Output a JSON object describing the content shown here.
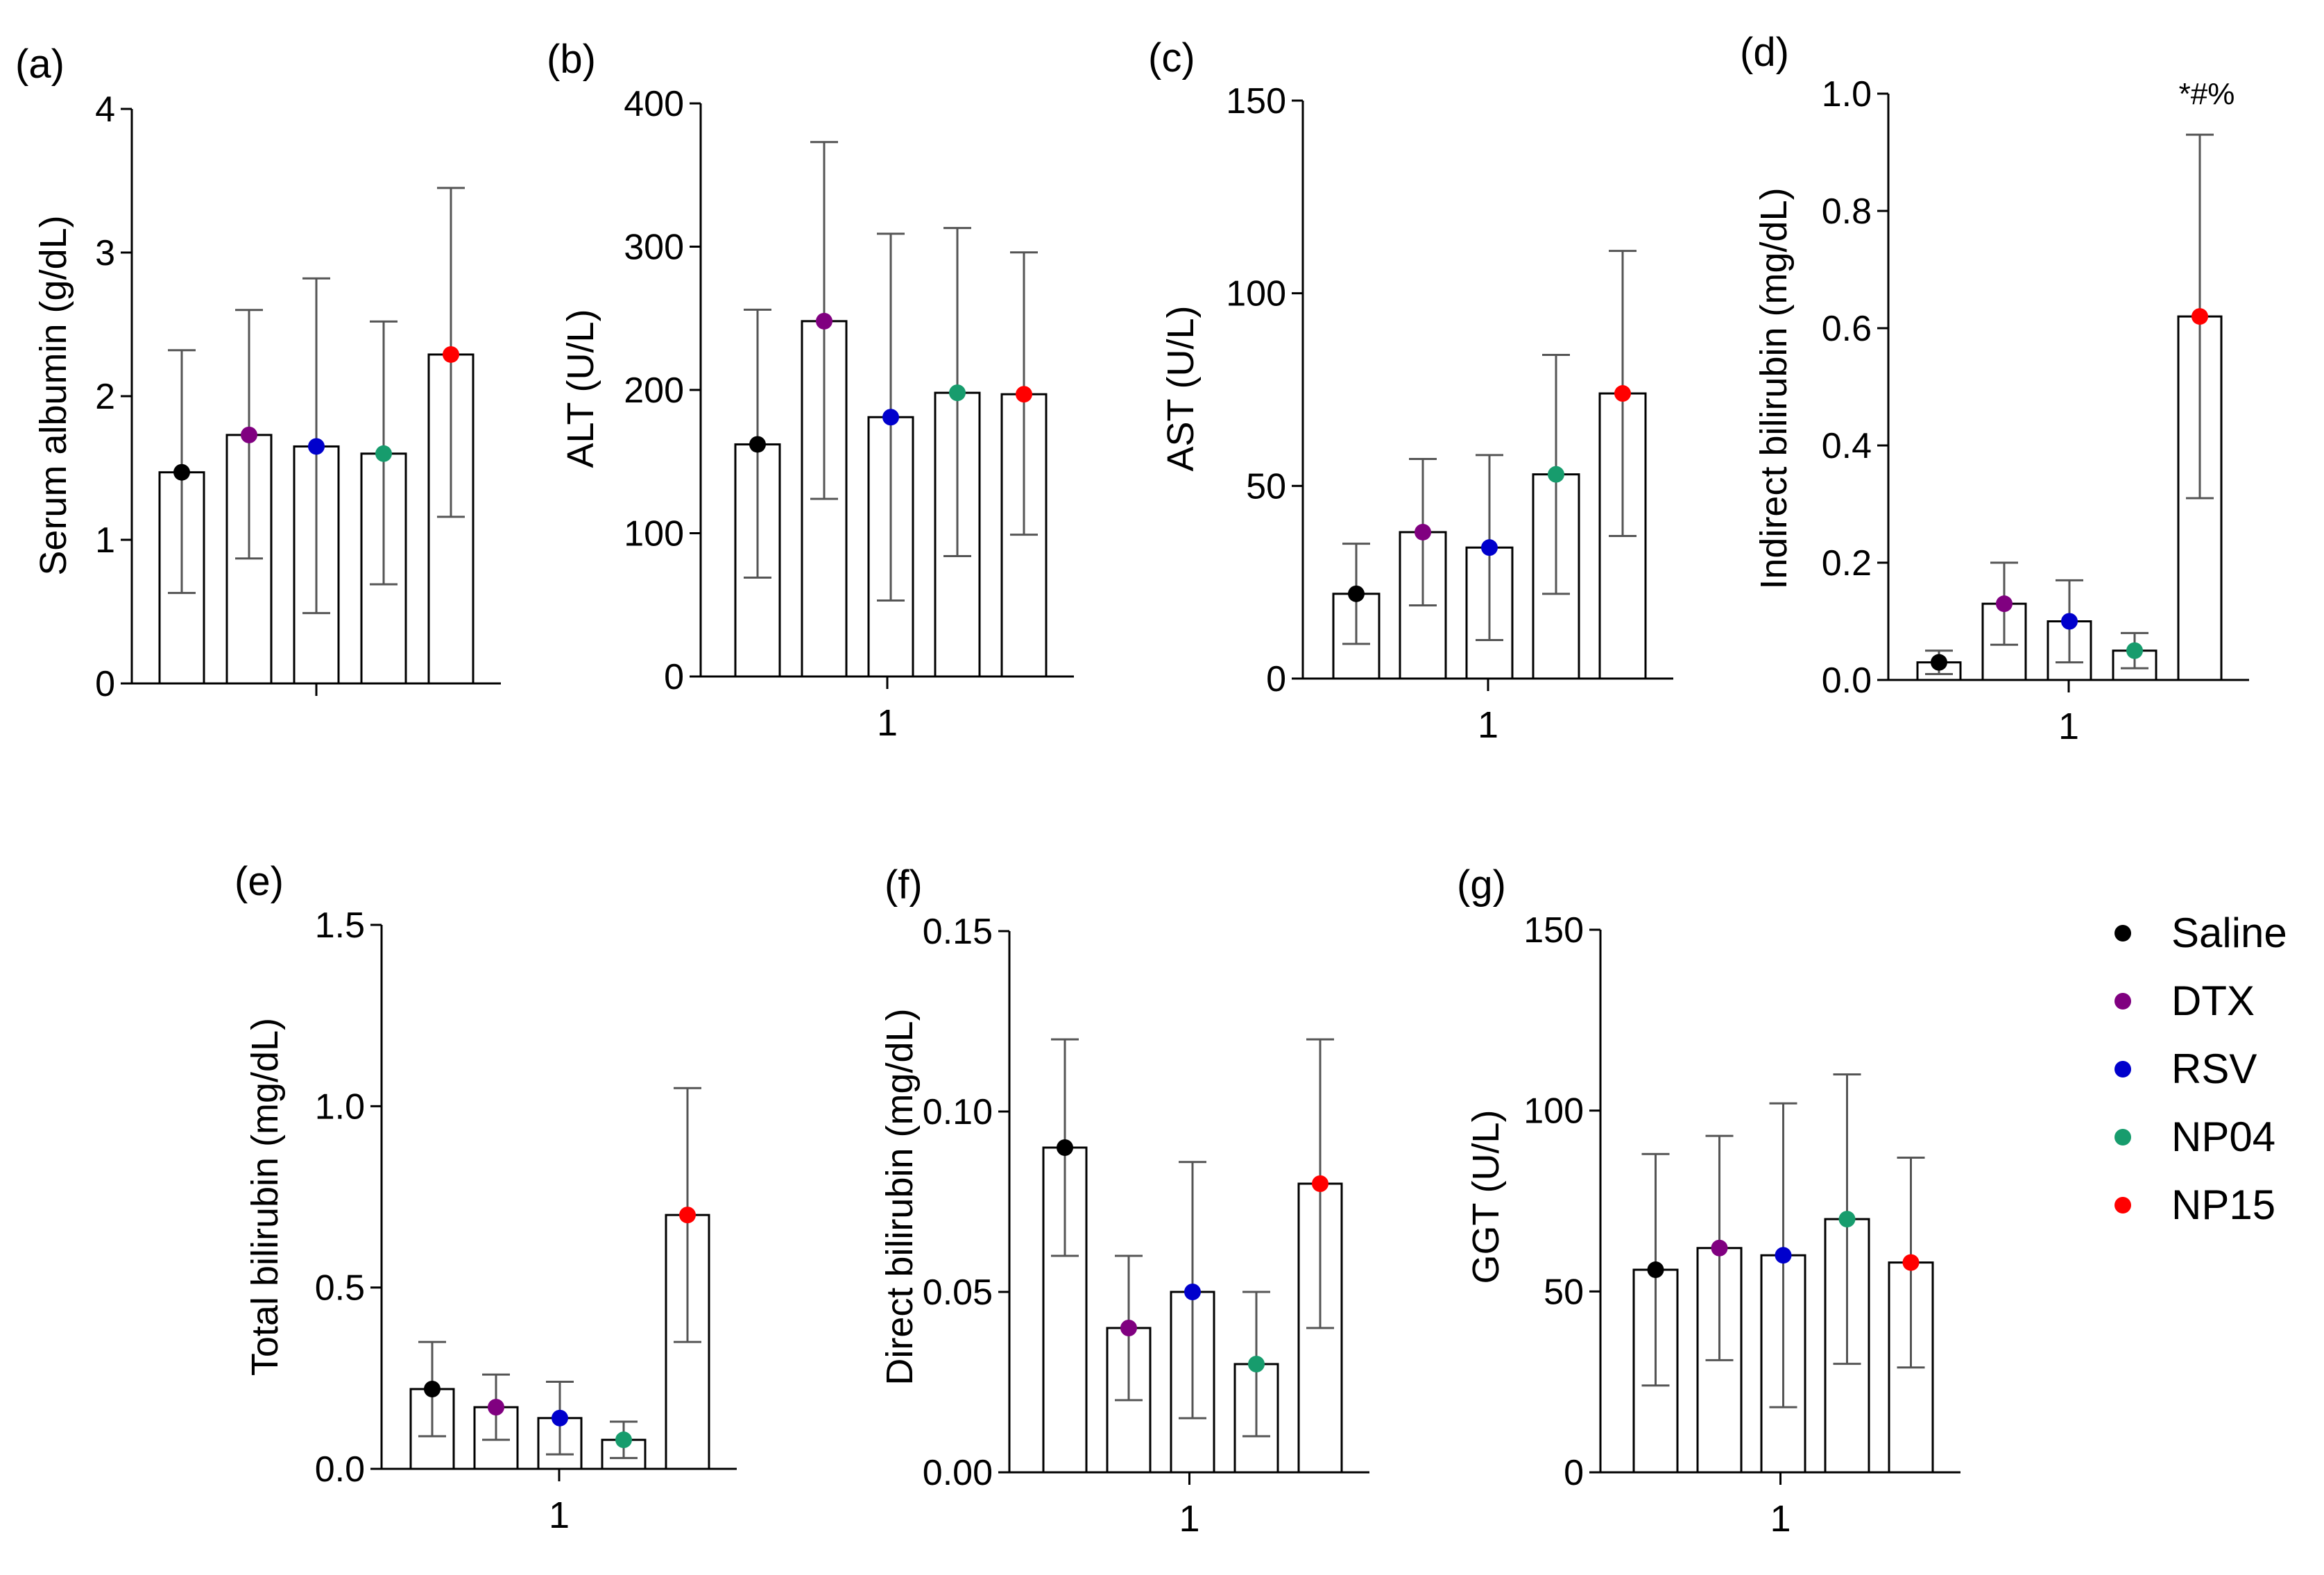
{
  "legend": [
    {
      "name": "Saline",
      "color": "#000000"
    },
    {
      "name": "DTX",
      "color": "#800080"
    },
    {
      "name": "RSV",
      "color": "#0000cc"
    },
    {
      "name": "NP04",
      "color": "#179c6d"
    },
    {
      "name": "NP15",
      "color": "#ff0000"
    }
  ],
  "chart_data": [
    {
      "type": "bar",
      "panel_label": "(a)",
      "ylabel": "Serum albumin (g/dL)",
      "ylim": [
        0,
        4
      ],
      "yticks": [
        "0",
        "1",
        "2",
        "3",
        "4"
      ],
      "xtick": "",
      "categories": [
        "Saline",
        "DTX",
        "RSV",
        "NP04",
        "NP15"
      ],
      "values": [
        1.47,
        1.73,
        1.65,
        1.6,
        2.29
      ],
      "err_low": [
        0.63,
        0.87,
        0.49,
        0.69,
        1.16
      ],
      "err_high": [
        2.32,
        2.6,
        2.82,
        2.52,
        3.45
      ],
      "annotation": ""
    },
    {
      "type": "bar",
      "panel_label": "(b)",
      "ylabel": "ALT (U/L)",
      "ylim": [
        0,
        400
      ],
      "yticks": [
        "0",
        "100",
        "200",
        "300",
        "400"
      ],
      "xtick": "1",
      "categories": [
        "Saline",
        "DTX",
        "RSV",
        "NP04",
        "NP15"
      ],
      "values": [
        162,
        248,
        181,
        198,
        197
      ],
      "err_low": [
        69,
        124,
        53,
        84,
        99
      ],
      "err_high": [
        256,
        373,
        309,
        313,
        296
      ],
      "annotation": ""
    },
    {
      "type": "bar",
      "panel_label": "(c)",
      "ylabel": "AST (U/L)",
      "ylim": [
        0,
        150
      ],
      "yticks": [
        "0",
        "50",
        "100",
        "150"
      ],
      "xtick": "1",
      "categories": [
        "Saline",
        "DTX",
        "RSV",
        "NP04",
        "NP15"
      ],
      "values": [
        22,
        38,
        34,
        53,
        74
      ],
      "err_low": [
        9,
        19,
        10,
        22,
        37
      ],
      "err_high": [
        35,
        57,
        58,
        84,
        111
      ],
      "annotation": ""
    },
    {
      "type": "bar",
      "panel_label": "(d)",
      "ylabel": "Indirect bilirubin (mg/dL)",
      "ylim": [
        0,
        1.0
      ],
      "yticks": [
        "0.0",
        "0.2",
        "0.4",
        "0.6",
        "0.8",
        "1.0"
      ],
      "xtick": "1",
      "categories": [
        "Saline",
        "DTX",
        "RSV",
        "NP04",
        "NP15"
      ],
      "values": [
        0.03,
        0.13,
        0.1,
        0.05,
        0.62
      ],
      "err_low": [
        0.01,
        0.06,
        0.03,
        0.02,
        0.31
      ],
      "err_high": [
        0.05,
        0.2,
        0.17,
        0.08,
        0.93
      ],
      "annotation": "*#%"
    },
    {
      "type": "bar",
      "panel_label": "(e)",
      "ylabel": "Total bilirubin (mg/dL)",
      "ylim": [
        0,
        1.5
      ],
      "yticks": [
        "0.0",
        "0.5",
        "1.0",
        "1.5"
      ],
      "xtick": "1",
      "categories": [
        "Saline",
        "DTX",
        "RSV",
        "NP04",
        "NP15"
      ],
      "values": [
        0.22,
        0.17,
        0.14,
        0.08,
        0.7
      ],
      "err_low": [
        0.09,
        0.08,
        0.04,
        0.03,
        0.35
      ],
      "err_high": [
        0.35,
        0.26,
        0.24,
        0.13,
        1.05
      ],
      "annotation": ""
    },
    {
      "type": "bar",
      "panel_label": "(f)",
      "ylabel": "Direct bilirubin (mg/dL)",
      "ylim": [
        0,
        0.15
      ],
      "yticks": [
        "0.00",
        "0.05",
        "0.10",
        "0.15"
      ],
      "xtick": "1",
      "categories": [
        "Saline",
        "DTX",
        "RSV",
        "NP04",
        "NP15"
      ],
      "values": [
        0.09,
        0.04,
        0.05,
        0.03,
        0.08
      ],
      "err_low": [
        0.06,
        0.02,
        0.015,
        0.01,
        0.04
      ],
      "err_high": [
        0.12,
        0.06,
        0.086,
        0.05,
        0.12
      ],
      "annotation": ""
    },
    {
      "type": "bar",
      "panel_label": "(g)",
      "ylabel": "GGT (U/L)",
      "ylim": [
        0,
        150
      ],
      "yticks": [
        "0",
        "50",
        "100",
        "150"
      ],
      "xtick": "1",
      "categories": [
        "Saline",
        "DTX",
        "RSV",
        "NP04",
        "NP15"
      ],
      "values": [
        56,
        62,
        60,
        70,
        58
      ],
      "err_low": [
        24,
        31,
        18,
        30,
        29
      ],
      "err_high": [
        88,
        93,
        102,
        110,
        87
      ],
      "annotation": ""
    }
  ]
}
